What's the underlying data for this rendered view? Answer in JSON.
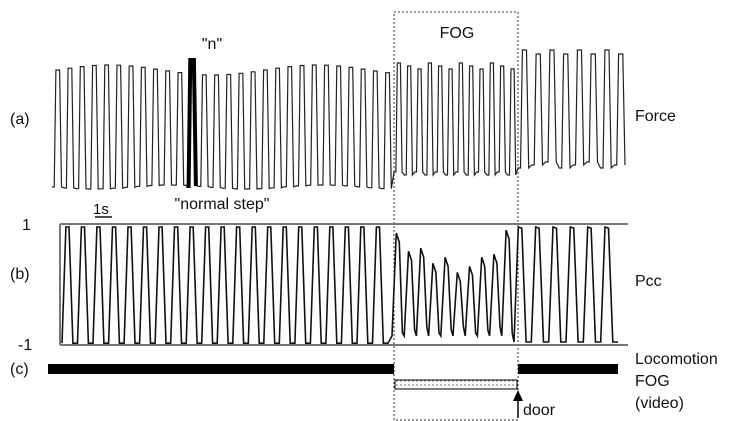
{
  "chart_data": {
    "type": "line",
    "panels": [
      {
        "label": "(a)",
        "series_name": "Force",
        "annotations": [
          "\"n\"",
          "\"normal step\""
        ],
        "normal_cycles": 28,
        "fog_cycles": 12,
        "post_cycles": 8,
        "highlighted_cycle": 11
      },
      {
        "label": "(b)",
        "series_name": "Pcc",
        "ylim": [
          -1,
          1
        ],
        "yticks": [
          "1",
          "-1"
        ],
        "scale_bar": "1s",
        "normal_cycles": 21,
        "fog_cycles": 10,
        "post_cycles": 6
      },
      {
        "label": "(c)",
        "type": "event-bars",
        "categories": [
          "Locomotion",
          "FOG (video)"
        ],
        "line1": "Locomotion",
        "line2": "FOG",
        "line3": "(video)"
      }
    ],
    "region_label": "FOG",
    "event_label": "door"
  }
}
